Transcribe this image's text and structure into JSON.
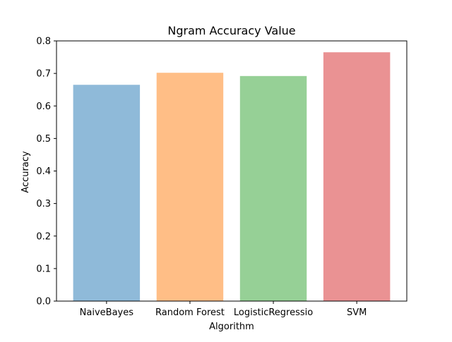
{
  "chart_data": {
    "type": "bar",
    "title": "Ngram Accuracy Value",
    "xlabel": "Algorithm",
    "ylabel": "Accuracy",
    "categories": [
      "NaiveBayes",
      "Random Forest",
      "LogisticRegressio",
      "SVM"
    ],
    "values": [
      0.665,
      0.702,
      0.692,
      0.765
    ],
    "colors": [
      "#8fbad9",
      "#ffbe86",
      "#96d096",
      "#ea9293"
    ],
    "ylim": [
      0,
      0.8
    ],
    "yticks": [
      "0.0",
      "0.1",
      "0.2",
      "0.3",
      "0.4",
      "0.5",
      "0.6",
      "0.7",
      "0.8"
    ],
    "grid": false,
    "legend": "none"
  }
}
